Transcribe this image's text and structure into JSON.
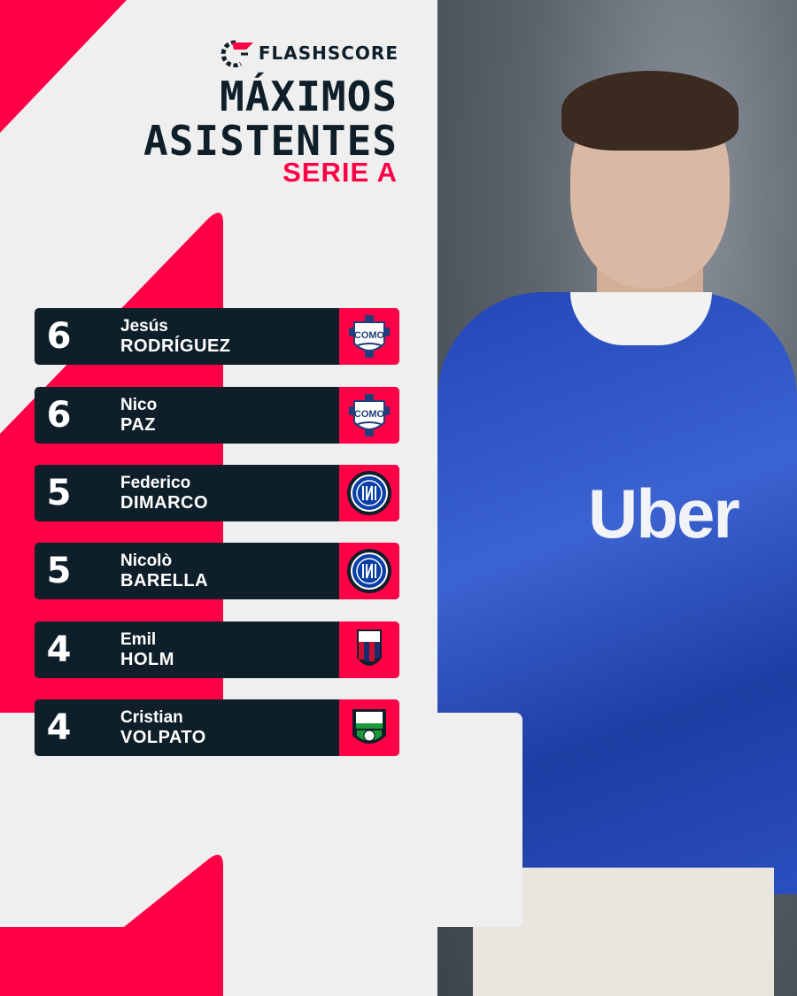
{
  "brand": {
    "name": "FLASHSCORE",
    "accent": "#ff0046",
    "dark": "#0f1f2a"
  },
  "title": {
    "line1": "MÁXIMOS",
    "line2": "ASISTENTES",
    "league": "SERIE A"
  },
  "players": [
    {
      "assists": "6",
      "first": "Jesús",
      "last": "RODRÍGUEZ",
      "club": "Como",
      "crest": "como-crest"
    },
    {
      "assists": "6",
      "first": "Nico",
      "last": "PAZ",
      "club": "Como",
      "crest": "como-crest"
    },
    {
      "assists": "5",
      "first": "Federico",
      "last": "DIMARCO",
      "club": "Inter",
      "crest": "inter-crest"
    },
    {
      "assists": "5",
      "first": "Nicolò",
      "last": "BARELLA",
      "club": "Inter",
      "crest": "inter-crest"
    },
    {
      "assists": "4",
      "first": "Emil",
      "last": "HOLM",
      "club": "Bologna",
      "crest": "bologna-crest"
    },
    {
      "assists": "4",
      "first": "Cristian",
      "last": "VOLPATO",
      "club": "Sassuolo",
      "crest": "sassuolo-crest"
    }
  ],
  "photo": {
    "sponsor": "Uber"
  }
}
